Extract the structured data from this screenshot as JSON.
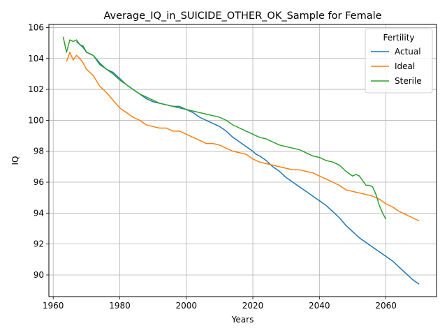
{
  "chart_data": {
    "type": "line",
    "title": "Average_IQ_in_SUICIDE_OTHER_OK_Sample for Female",
    "xlabel": "Years",
    "ylabel": "IQ",
    "xlim": [
      1958.7,
      2075.2
    ],
    "ylim": [
      88.6,
      106.2
    ],
    "xticks": [
      1960,
      1980,
      2000,
      2020,
      2040,
      2060
    ],
    "yticks": [
      90,
      92,
      94,
      96,
      98,
      100,
      102,
      104,
      106
    ],
    "grid": true,
    "legend": {
      "title": "Fertility",
      "placement": "top-right"
    },
    "series": [
      {
        "name": "Actual",
        "color": "#1f77b4",
        "x": [
          1967,
          1968,
          1969,
          1970,
          1972,
          1974,
          1976,
          1978,
          1980,
          1982,
          1984,
          1986,
          1988,
          1990,
          1992,
          1994,
          1996,
          1998,
          2000,
          2002,
          2004,
          2006,
          2008,
          2010,
          2012,
          2014,
          2016,
          2018,
          2020,
          2021,
          2022,
          2024,
          2026,
          2028,
          2030,
          2032,
          2034,
          2036,
          2038,
          2040,
          2042,
          2044,
          2046,
          2048,
          2050,
          2052,
          2054,
          2056,
          2058,
          2060,
          2062,
          2064,
          2066,
          2068,
          2070
        ],
        "values": [
          105.1,
          104.9,
          104.7,
          104.4,
          104.2,
          103.7,
          103.3,
          103.1,
          102.7,
          102.3,
          102.0,
          101.7,
          101.4,
          101.2,
          101.1,
          101.0,
          100.9,
          100.8,
          100.7,
          100.5,
          100.2,
          100.0,
          99.8,
          99.6,
          99.3,
          98.9,
          98.6,
          98.3,
          98.0,
          97.8,
          97.7,
          97.4,
          97.0,
          96.7,
          96.3,
          96.0,
          95.7,
          95.4,
          95.1,
          94.8,
          94.5,
          94.1,
          93.7,
          93.2,
          92.8,
          92.4,
          92.1,
          91.8,
          91.5,
          91.2,
          90.9,
          90.5,
          90.1,
          89.7,
          89.4
        ]
      },
      {
        "name": "Ideal",
        "color": "#ff7f0e",
        "x": [
          1964,
          1965,
          1966,
          1967,
          1968,
          1969,
          1970,
          1972,
          1974,
          1976,
          1978,
          1980,
          1982,
          1984,
          1986,
          1988,
          1990,
          1992,
          1994,
          1996,
          1998,
          2000,
          2002,
          2004,
          2006,
          2008,
          2010,
          2012,
          2014,
          2016,
          2018,
          2020,
          2022,
          2024,
          2026,
          2028,
          2030,
          2032,
          2034,
          2036,
          2038,
          2040,
          2042,
          2044,
          2046,
          2048,
          2050,
          2052,
          2054,
          2056,
          2058,
          2060,
          2062,
          2064,
          2066,
          2068,
          2070
        ],
        "values": [
          103.8,
          104.4,
          103.9,
          104.2,
          104.0,
          103.7,
          103.3,
          102.9,
          102.2,
          101.8,
          101.3,
          100.8,
          100.5,
          100.2,
          100.0,
          99.7,
          99.6,
          99.5,
          99.5,
          99.3,
          99.3,
          99.1,
          98.9,
          98.7,
          98.5,
          98.5,
          98.4,
          98.2,
          98.0,
          97.9,
          97.8,
          97.5,
          97.3,
          97.2,
          97.1,
          97.0,
          96.9,
          96.8,
          96.8,
          96.7,
          96.6,
          96.4,
          96.2,
          96.0,
          95.8,
          95.5,
          95.4,
          95.3,
          95.2,
          95.1,
          94.9,
          94.6,
          94.4,
          94.1,
          93.9,
          93.7,
          93.5
        ]
      },
      {
        "name": "Sterile",
        "color": "#2ca02c",
        "x": [
          1963,
          1964,
          1965,
          1966,
          1967,
          1968,
          1969,
          1970,
          1972,
          1974,
          1976,
          1978,
          1980,
          1982,
          1984,
          1986,
          1988,
          1990,
          1992,
          1994,
          1996,
          1998,
          2000,
          2002,
          2004,
          2006,
          2008,
          2010,
          2012,
          2014,
          2016,
          2018,
          2020,
          2022,
          2024,
          2026,
          2028,
          2030,
          2032,
          2034,
          2036,
          2038,
          2040,
          2042,
          2044,
          2046,
          2048,
          2050,
          2051,
          2052,
          2054,
          2055,
          2056,
          2057,
          2058,
          2059,
          2060
        ],
        "values": [
          105.4,
          104.4,
          105.2,
          105.1,
          105.2,
          104.9,
          104.8,
          104.4,
          104.2,
          103.6,
          103.3,
          103.0,
          102.6,
          102.3,
          102.0,
          101.7,
          101.5,
          101.3,
          101.1,
          101.0,
          100.9,
          100.9,
          100.7,
          100.6,
          100.5,
          100.4,
          100.3,
          100.2,
          100.0,
          99.7,
          99.5,
          99.3,
          99.1,
          98.9,
          98.8,
          98.6,
          98.4,
          98.3,
          98.2,
          98.1,
          97.9,
          97.7,
          97.6,
          97.4,
          97.3,
          97.1,
          96.7,
          96.4,
          96.5,
          96.4,
          95.8,
          95.8,
          95.7,
          95.2,
          94.5,
          94.0,
          93.6
        ]
      }
    ]
  }
}
